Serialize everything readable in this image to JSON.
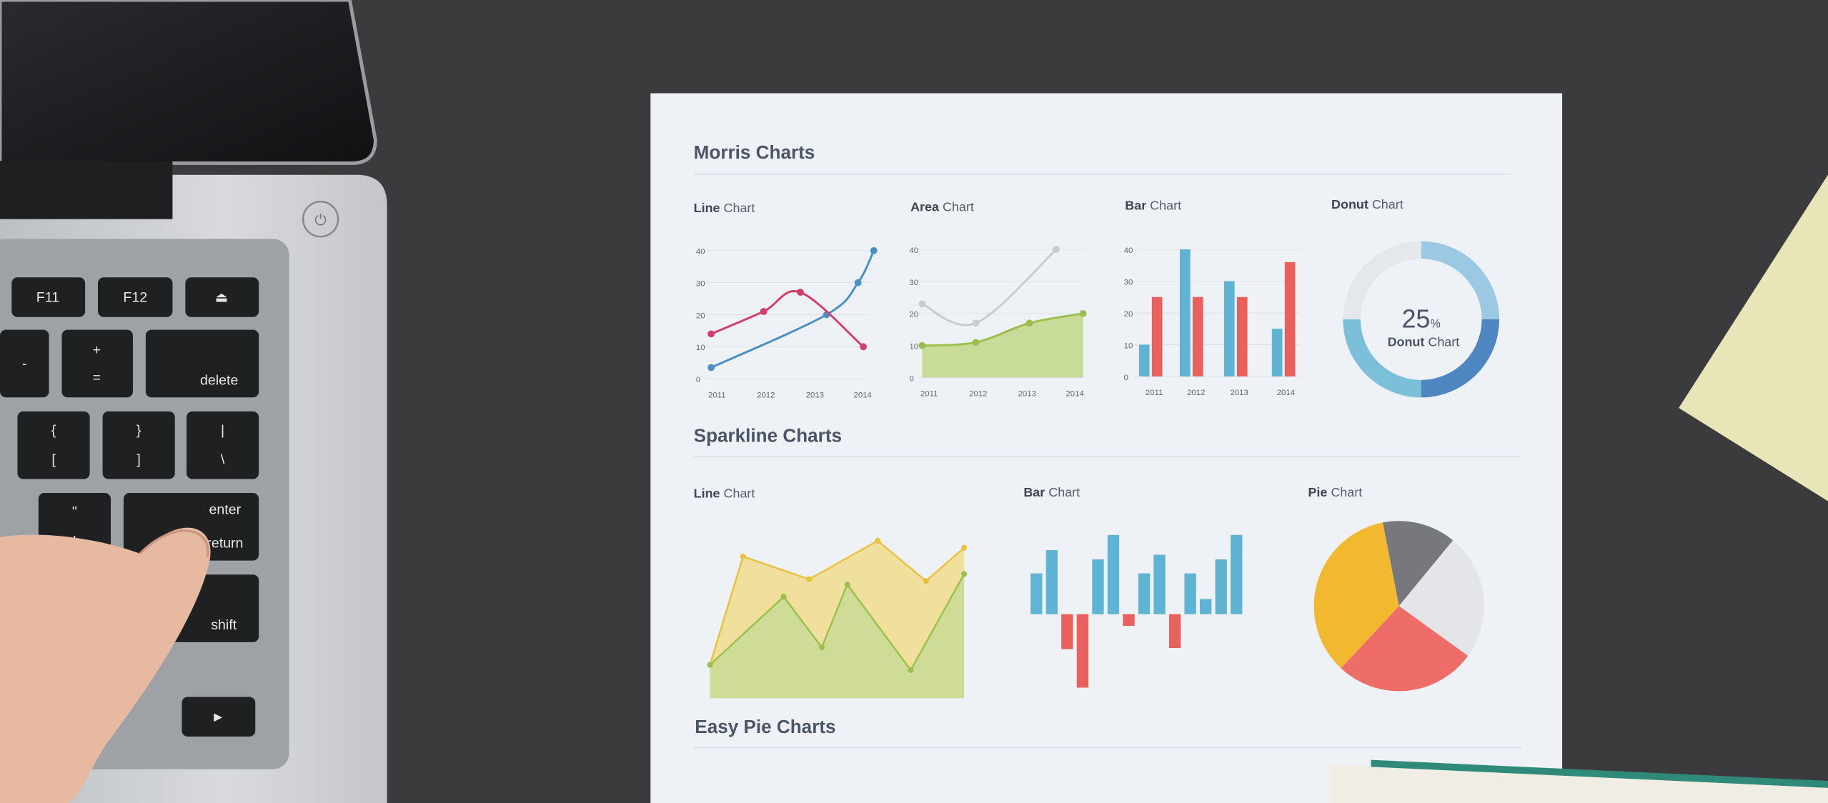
{
  "keyboard": {
    "keys": [
      "F11",
      "F12",
      "delete",
      "+",
      "=",
      "-",
      "{",
      "[",
      "}",
      "]",
      "|",
      "\\",
      "\"",
      "'",
      "enter",
      "return",
      "shift"
    ]
  },
  "paper": {
    "sections": {
      "morris": "Morris Charts",
      "sparkline": "Sparkline Charts",
      "easy_pie": "Easy Pie Charts"
    },
    "chart_word": "Chart"
  },
  "chart_data": [
    {
      "id": "morris-line",
      "type": "line",
      "title_bold": "Line",
      "title": "Chart",
      "categories": [
        "2011",
        "2012",
        "2013",
        "2014"
      ],
      "yticks": [
        0,
        10,
        20,
        30,
        40
      ],
      "ylim": [
        0,
        40
      ],
      "grid": true,
      "series": [
        {
          "color": "#4a90c2",
          "x": [
            2011,
            2013.2,
            2013.8,
            2014.1
          ],
          "y": [
            3.5,
            20,
            30,
            40
          ]
        },
        {
          "color": "#d43c6a",
          "x": [
            2011,
            2012,
            2012.7,
            2013.9
          ],
          "y": [
            14,
            21,
            27,
            10
          ]
        }
      ]
    },
    {
      "id": "morris-area",
      "type": "area",
      "title_bold": "Area",
      "title": "Chart",
      "categories": [
        "2011",
        "2012",
        "2013",
        "2014"
      ],
      "yticks": [
        0,
        10,
        20,
        30,
        40
      ],
      "ylim": [
        0,
        40
      ],
      "grid": true,
      "series": [
        {
          "color": "#c8ccd0",
          "x": [
            2011,
            2012,
            2013.5
          ],
          "y": [
            23,
            17,
            40
          ]
        },
        {
          "color": "#9bbf4a",
          "fill": "#c3d88f",
          "x": [
            2011,
            2012,
            2013,
            2014
          ],
          "y": [
            10,
            11,
            17,
            20
          ]
        }
      ]
    },
    {
      "id": "morris-bar",
      "type": "bar",
      "title_bold": "Bar",
      "title": "Chart",
      "categories": [
        "2011",
        "2012",
        "2013",
        "2014"
      ],
      "yticks": [
        0,
        10,
        20,
        30,
        40
      ],
      "ylim": [
        0,
        40
      ],
      "grid": true,
      "series": [
        {
          "color": "#5fb3d3",
          "values": [
            10,
            40,
            30,
            15
          ]
        },
        {
          "color": "#e8615d",
          "values": [
            25,
            25,
            25,
            36
          ]
        }
      ]
    },
    {
      "id": "morris-donut",
      "type": "pie",
      "title_bold": "Donut",
      "title": "Chart",
      "center_value": "25",
      "center_unit": "%",
      "center_label_bold": "Donut",
      "center_label": "Chart",
      "values": [
        25,
        25,
        25,
        25
      ],
      "colors": [
        "#9dc8e4",
        "#4d86c0",
        "#7cbfd9",
        "#e4e7eb"
      ]
    },
    {
      "id": "spark-line",
      "type": "area",
      "title_bold": "Line",
      "title": "Chart",
      "series": [
        {
          "color": "#e9c23d",
          "fill": "#f1dc8e",
          "x": [
            0,
            1.3,
            3.9,
            6.6,
            8.5,
            10
          ],
          "y": [
            1.9,
            8.1,
            6.8,
            9,
            6.7,
            8.6
          ]
        },
        {
          "color": "#9dc04a",
          "fill": "#c9dc97",
          "x": [
            0,
            2.9,
            4.4,
            5.4,
            7.9,
            10
          ],
          "y": [
            1.9,
            5.8,
            2.9,
            6.5,
            1.6,
            7.1
          ]
        }
      ]
    },
    {
      "id": "spark-bar",
      "type": "bar",
      "title_bold": "Bar",
      "title": "Chart",
      "positive_color": "#5fb3d3",
      "negative_color": "#e8615d",
      "values": [
        3.5,
        5.5,
        -3,
        -6.3,
        4.7,
        6.8,
        -1,
        3.5,
        5.1,
        -2.9,
        3.5,
        1.3,
        4.7,
        6.8
      ]
    },
    {
      "id": "spark-pie",
      "type": "pie",
      "title_bold": "Pie",
      "title": "Chart",
      "values": [
        14,
        24,
        27,
        35
      ],
      "colors": [
        "#76787d",
        "#e3e5e9",
        "#ee6d68",
        "#f2b830"
      ]
    }
  ]
}
